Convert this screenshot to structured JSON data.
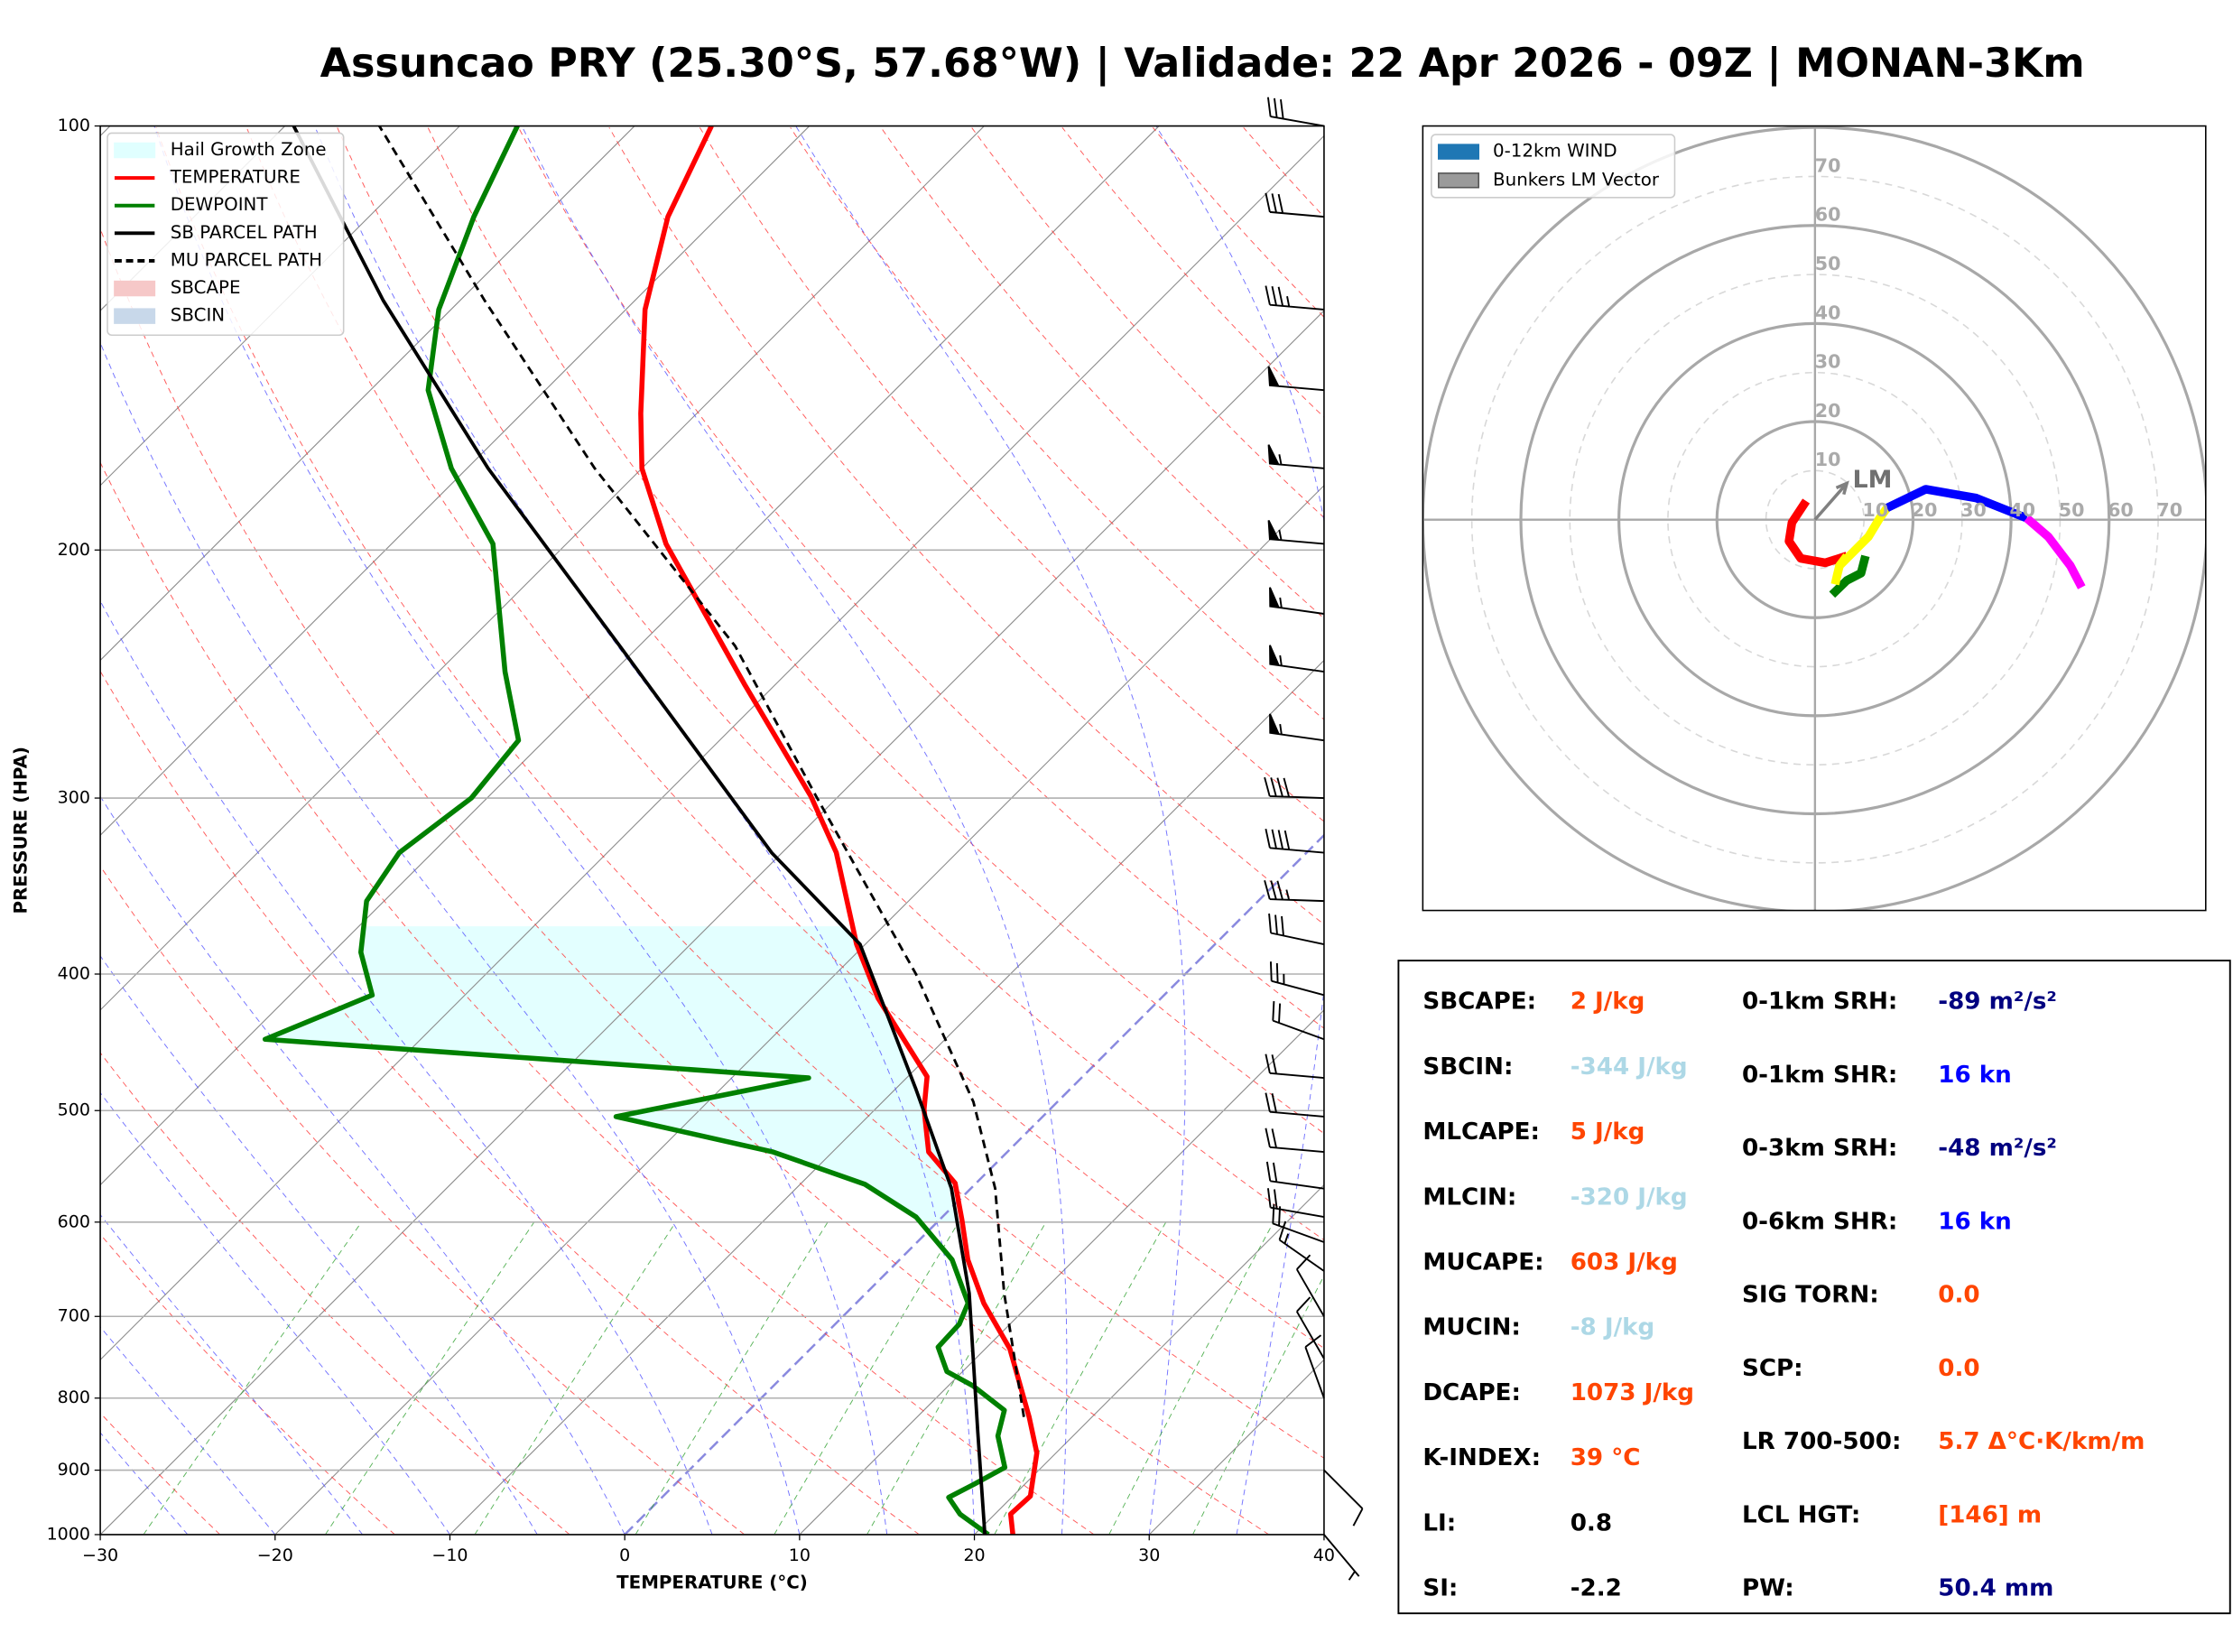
{
  "title": "Assuncao PRY (25.30°S, 57.68°W) | Validade: 22 Apr 2026 - 09Z | MONAN-3Km",
  "chart_data": [
    {
      "type": "skewt",
      "xlabel": "TEMPERATURE (°C)",
      "ylabel": "PRESSURE (HPA)",
      "xlim": [
        -30,
        40
      ],
      "xticks": [
        {
          "value": -30,
          "label": "−30"
        },
        {
          "value": -20,
          "label": "−20"
        },
        {
          "value": -10,
          "label": "−10"
        },
        0,
        10,
        20,
        30,
        40
      ],
      "ylim": [
        1000,
        100
      ],
      "log_scale_y": true,
      "yticks": [
        100,
        200,
        300,
        400,
        500,
        600,
        700,
        800,
        900,
        1000
      ],
      "grid": true,
      "legend": "upper left",
      "hail_growth_zone": {
        "name": "Hail Growth Zone",
        "color": "#e0ffff",
        "pressure": [
          600,
          370
        ]
      },
      "series": [
        {
          "name": "TEMPERATURE",
          "color": "#ff0000",
          "style": "solid",
          "pressure": [
            1000,
            967,
            939,
            875,
            825,
            738,
            685,
            638,
            598,
            563,
            535,
            499,
            473,
            416,
            381,
            328,
            299,
            249,
            198,
            175,
            160,
            135,
            116,
            100
          ],
          "values": [
            22.2,
            20.9,
            21.0,
            18.9,
            16.4,
            11.4,
            7.3,
            3.9,
            1.3,
            -1.2,
            -4.5,
            -7.2,
            -8.9,
            -16.2,
            -20.5,
            -26.9,
            -31.6,
            -41.8,
            -54.3,
            -60.0,
            -63.2,
            -68.9,
            -72.9,
            -75.6
          ]
        },
        {
          "name": "DEWPOINT",
          "color": "#008000",
          "style": "solid",
          "pressure": [
            1000,
            967,
            941,
            921,
            896,
            851,
            816,
            784,
            766,
            736,
            709,
            685,
            638,
            595,
            564,
            535,
            505,
            474,
            445,
            414,
            386,
            355,
            328,
            300,
            273,
            244,
            198,
            175,
            154,
            135,
            116,
            100
          ],
          "values": [
            20.8,
            18.0,
            16.4,
            17.1,
            17.9,
            15.7,
            14.6,
            11.4,
            9.1,
            7.2,
            7.1,
            6.4,
            3.0,
            -1.5,
            -6.3,
            -13.4,
            -24.4,
            -15.6,
            -48.9,
            -45.3,
            -48.4,
            -51.0,
            -51.9,
            -50.9,
            -51.5,
            -56.2,
            -64.2,
            -70.9,
            -76.7,
            -80.7,
            -84.0,
            -86.7
          ]
        },
        {
          "name": "SB PARCEL PATH",
          "color": "#000000",
          "style": "solid",
          "pressure": [
            1000,
            845,
            674,
            568,
            482,
            381,
            328,
            234,
            175,
            133,
            100
          ],
          "values": [
            20.6,
            14.3,
            5.9,
            -1.1,
            -8.9,
            -20.3,
            -30.6,
            -51.1,
            -68.8,
            -84.4,
            -99.5
          ]
        },
        {
          "name": "MU PARCEL PATH",
          "color": "#000000",
          "style": "dashed",
          "pressure": [
            825,
            674,
            568,
            493,
            400,
            299,
            234,
            175,
            133,
            100
          ],
          "values": [
            16.1,
            7.9,
            1.4,
            -4.8,
            -15.4,
            -31.3,
            -44.5,
            -62.7,
            -78.6,
            -94.6
          ]
        }
      ],
      "areas": [
        {
          "name": "SBCAPE",
          "color": "#f6c8c8"
        },
        {
          "name": "SBCIN",
          "color": "#c8d8ea"
        }
      ],
      "wind_barbs": {
        "pressure": [
          100,
          116,
          135,
          154,
          175,
          198,
          222,
          244,
          273,
          300,
          328,
          355,
          381,
          414,
          445,
          474,
          505,
          535,
          568,
          595,
          620,
          650,
          700,
          750,
          800,
          900,
          1000
        ],
        "speed": [
          30,
          30,
          35,
          50,
          55,
          55,
          55,
          55,
          55,
          40,
          40,
          35,
          30,
          25,
          20,
          20,
          20,
          20,
          20,
          20,
          20,
          15,
          10,
          10,
          10,
          10,
          5
        ],
        "direction": [
          280,
          275,
          275,
          275,
          275,
          275,
          278,
          278,
          278,
          272,
          275,
          272,
          282,
          285,
          290,
          275,
          275,
          275,
          278,
          280,
          290,
          305,
          330,
          330,
          340,
          135,
          140
        ]
      }
    },
    {
      "type": "hodograph",
      "rlim": [
        0,
        80
      ],
      "rticks": [
        10,
        20,
        30,
        40,
        50,
        60,
        70
      ],
      "legend": [
        {
          "label": "0-12km WIND",
          "color": "#1f77b4"
        },
        {
          "label": "Bunkers LM Vector",
          "color": "#9a9a9a"
        }
      ],
      "series": [
        {
          "color": "#ff0000",
          "u": [
            -1.8,
            -4.7,
            -5.3,
            -2.9,
            2.1,
            6.5
          ],
          "v": [
            3.8,
            -0.6,
            -4.4,
            -7.9,
            -8.8,
            -7.4
          ]
        },
        {
          "color": "#ffff00",
          "u": [
            6.5,
            5.0,
            7.9,
            10.9,
            13.2,
            14.7
          ],
          "v": [
            -7.4,
            -9.4,
            -6.5,
            -3.5,
            0.3,
            2.4
          ]
        },
        {
          "color": "#008000",
          "u": [
            10.3,
            9.4,
            6.5,
            3.5
          ],
          "v": [
            -7.4,
            -10.9,
            -12.4,
            -15.3
          ]
        },
        {
          "color": "#ffff00",
          "u": [
            4.1,
            4.6,
            5.0
          ],
          "v": [
            -13.2,
            -11.0,
            -9.4
          ]
        },
        {
          "color": "#0000ff",
          "u": [
            14.7,
            22.6,
            32.9,
            43.2
          ],
          "v": [
            2.4,
            6.2,
            4.4,
            0.3
          ]
        },
        {
          "color": "#ff00ff",
          "u": [
            43.2,
            47.6,
            52.1,
            54.4
          ],
          "v": [
            0.3,
            -3.5,
            -9.4,
            -13.8
          ]
        }
      ],
      "lm_vector": {
        "label": "LM",
        "u": 6.5,
        "v": 7.4,
        "color": "#808080"
      }
    }
  ],
  "indices": {
    "left": [
      {
        "label": "SBCAPE:",
        "value": "2 J/kg",
        "color": "#ff4500"
      },
      {
        "label": "SBCIN:",
        "value": "-344 J/kg",
        "color": "#add8e6"
      },
      {
        "label": "MLCAPE:",
        "value": "5 J/kg",
        "color": "#ff4500"
      },
      {
        "label": "MLCIN:",
        "value": "-320 J/kg",
        "color": "#add8e6"
      },
      {
        "label": "MUCAPE:",
        "value": "603 J/kg",
        "color": "#ff4500"
      },
      {
        "label": "MUCIN:",
        "value": "-8 J/kg",
        "color": "#add8e6"
      },
      {
        "label": "DCAPE:",
        "value": "1073 J/kg",
        "color": "#ff4500"
      },
      {
        "label": "K-INDEX:",
        "value": "39 °C",
        "color": "#ff4500"
      },
      {
        "label": "LI:",
        "value": "0.8",
        "color": "#000000"
      },
      {
        "label": "SI:",
        "value": "-2.2",
        "color": "#000000"
      }
    ],
    "right": [
      {
        "label": "0-1km SRH:",
        "value": "-89 m²/s²",
        "color": "#000080"
      },
      {
        "label": "0-1km SHR:",
        "value": "16 kn",
        "color": "#0000ff"
      },
      {
        "label": "0-3km SRH:",
        "value": "-48 m²/s²",
        "color": "#000080"
      },
      {
        "label": "0-6km SHR:",
        "value": "16 kn",
        "color": "#0000ff"
      },
      {
        "label": "SIG TORN:",
        "value": "0.0",
        "color": "#ff4500"
      },
      {
        "label": "SCP:",
        "value": "0.0",
        "color": "#ff4500"
      },
      {
        "label": "LR 700-500:",
        "value": "5.7 Δ°C·K/km/m",
        "color": "#ff4500"
      },
      {
        "label": "LCL HGT:",
        "value": "[146] m",
        "color": "#ff4500"
      },
      {
        "label": "PW:",
        "value": "50.4 mm",
        "color": "#000080"
      }
    ]
  }
}
